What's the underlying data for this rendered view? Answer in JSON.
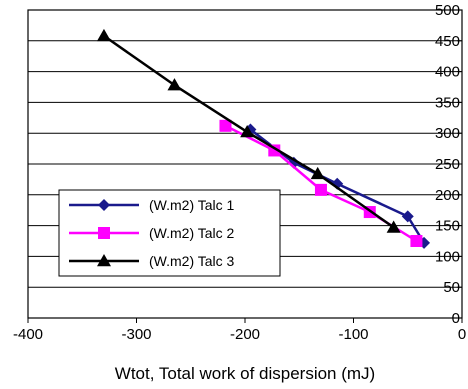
{
  "chart_data": {
    "type": "line",
    "title": "",
    "xlabel": "Wtot, Total work of dispersion  (mJ)",
    "ylabel": "",
    "xlim": [
      -400,
      0
    ],
    "ylim": [
      0,
      500
    ],
    "x_ticks": [
      -400,
      -300,
      -200,
      -100,
      0
    ],
    "y_ticks": [
      0,
      50,
      100,
      150,
      200,
      250,
      300,
      350,
      400,
      450,
      500
    ],
    "x_tick_labels": [
      "-400",
      "-300",
      "-200",
      "-100",
      "0"
    ],
    "y_tick_labels": [
      "0",
      "50",
      "100",
      "150",
      "200",
      "250",
      "300",
      "350",
      "400",
      "450",
      "500"
    ],
    "grid": "horizontal",
    "legend_position": "lower-left",
    "series": [
      {
        "name": "(W.m2) Talc 1",
        "color": "#1a1a8c",
        "marker": "diamond",
        "points": [
          [
            -195,
            306
          ],
          [
            -155,
            252
          ],
          [
            -115,
            218
          ],
          [
            -50,
            165
          ],
          [
            -35,
            122
          ]
        ]
      },
      {
        "name": "(W.m2) Talc 2",
        "color": "#ff00ff",
        "marker": "square",
        "points": [
          [
            -218,
            312
          ],
          [
            -173,
            272
          ],
          [
            -130,
            208
          ],
          [
            -85,
            172
          ],
          [
            -42,
            125
          ]
        ]
      },
      {
        "name": "(W.m2) Talc 3",
        "color": "#000000",
        "marker": "triangle",
        "points": [
          [
            -330,
            458
          ],
          [
            -265,
            378
          ],
          [
            -198,
            302
          ],
          [
            -133,
            234
          ],
          [
            -63,
            147
          ]
        ]
      }
    ]
  }
}
